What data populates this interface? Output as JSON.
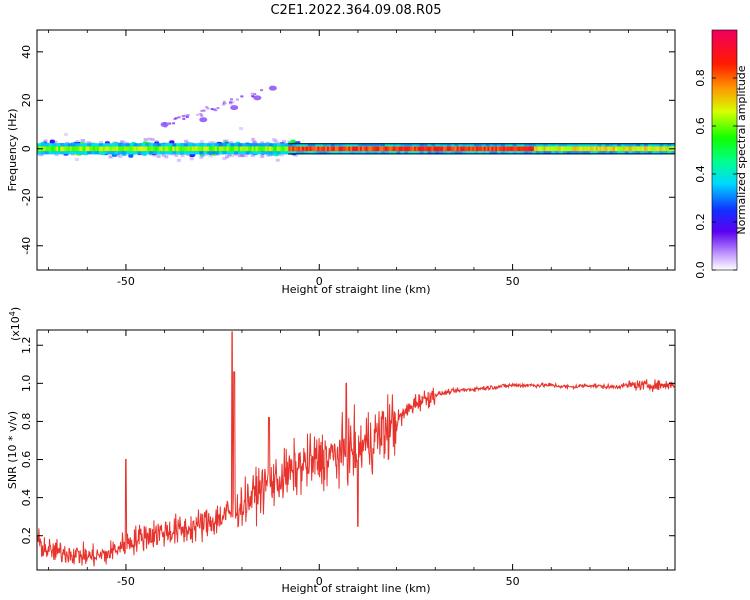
{
  "figure": {
    "title": "C2E1.2022.364.09.08.R05"
  },
  "chart_data": [
    {
      "type": "heatmap",
      "xlabel": "Height of straight line (km)",
      "ylabel": "Frequency (Hz)",
      "xlim": [
        -73,
        92
      ],
      "ylim": [
        -50,
        49
      ],
      "xticks": [
        -50,
        0,
        50
      ],
      "yticks": [
        -40,
        -20,
        0,
        20,
        40
      ],
      "xtick_labels": [
        "-50",
        "0",
        "50"
      ],
      "ytick_labels": [
        "-40",
        "-20",
        "0",
        "20",
        "40"
      ],
      "grid": false,
      "colorbar": {
        "label": "Normalized spectral amplitude",
        "range": [
          0,
          1
        ],
        "ticks": [
          0.0,
          0.2,
          0.4,
          0.6,
          0.8
        ],
        "tick_labels": [
          "0.0",
          "0.2",
          "0.4",
          "0.6",
          "0.8"
        ],
        "colormap": "rainbow (white-purple-blue-cyan-green-yellow-red-magenta)"
      },
      "features": [
        {
          "name": "signal band",
          "freq_center": 0,
          "x_range": [
            -73,
            92
          ],
          "half_width_hz": 1,
          "peak_amplitude": 0.85
        },
        {
          "name": "noisy low region",
          "x_range": [
            -73,
            -5
          ],
          "freq_spread_hz": [
            -9,
            10
          ]
        },
        {
          "name": "rising trace",
          "x": [
            -40,
            -30,
            -22,
            -16,
            -12
          ],
          "y": [
            10,
            12,
            17,
            21,
            25
          ]
        }
      ]
    },
    {
      "type": "line",
      "xlabel": "Height of straight line (km)",
      "ylabel": "SNR (10 * v/v)",
      "yscale_label": "(x10",
      "yscale_exponent": "4",
      "yscale_suffix": ")",
      "xlim": [
        -73,
        92
      ],
      "ylim": [
        0.02,
        1.28
      ],
      "xticks": [
        -50,
        0,
        50
      ],
      "yticks": [
        0.2,
        0.4,
        0.6,
        0.8,
        1.0,
        1.2
      ],
      "xtick_labels": [
        "-50",
        "0",
        "50"
      ],
      "ytick_labels": [
        "0.2",
        "0.4",
        "0.6",
        "0.8",
        "1.0",
        "1.2"
      ],
      "grid": false,
      "color": "#e8332c",
      "series": [
        {
          "x": [
            -73,
            -70,
            -65,
            -60,
            -55,
            -50,
            -45,
            -40,
            -35,
            -30,
            -25,
            -20,
            -15,
            -10,
            -5,
            0,
            5,
            10,
            15,
            20,
            25,
            30,
            35,
            40,
            45,
            50,
            55,
            60,
            65,
            70,
            75,
            80,
            85,
            90,
            92
          ],
          "y": [
            0.17,
            0.12,
            0.11,
            0.09,
            0.1,
            0.16,
            0.2,
            0.22,
            0.23,
            0.26,
            0.3,
            0.36,
            0.45,
            0.5,
            0.56,
            0.6,
            0.62,
            0.66,
            0.72,
            0.8,
            0.9,
            0.94,
            0.96,
            0.97,
            0.98,
            0.99,
            0.99,
            0.99,
            0.98,
            0.99,
            0.98,
            0.99,
            0.99,
            0.99,
            1.0
          ],
          "spikes": [
            {
              "x": -50,
              "y": 0.6
            },
            {
              "x": -22.5,
              "y": 1.27
            },
            {
              "x": -22,
              "y": 1.06
            },
            {
              "x": -13,
              "y": 0.82
            },
            {
              "x": 7,
              "y": 1.0
            },
            {
              "x": 10,
              "y": 0.25
            }
          ]
        }
      ]
    }
  ]
}
